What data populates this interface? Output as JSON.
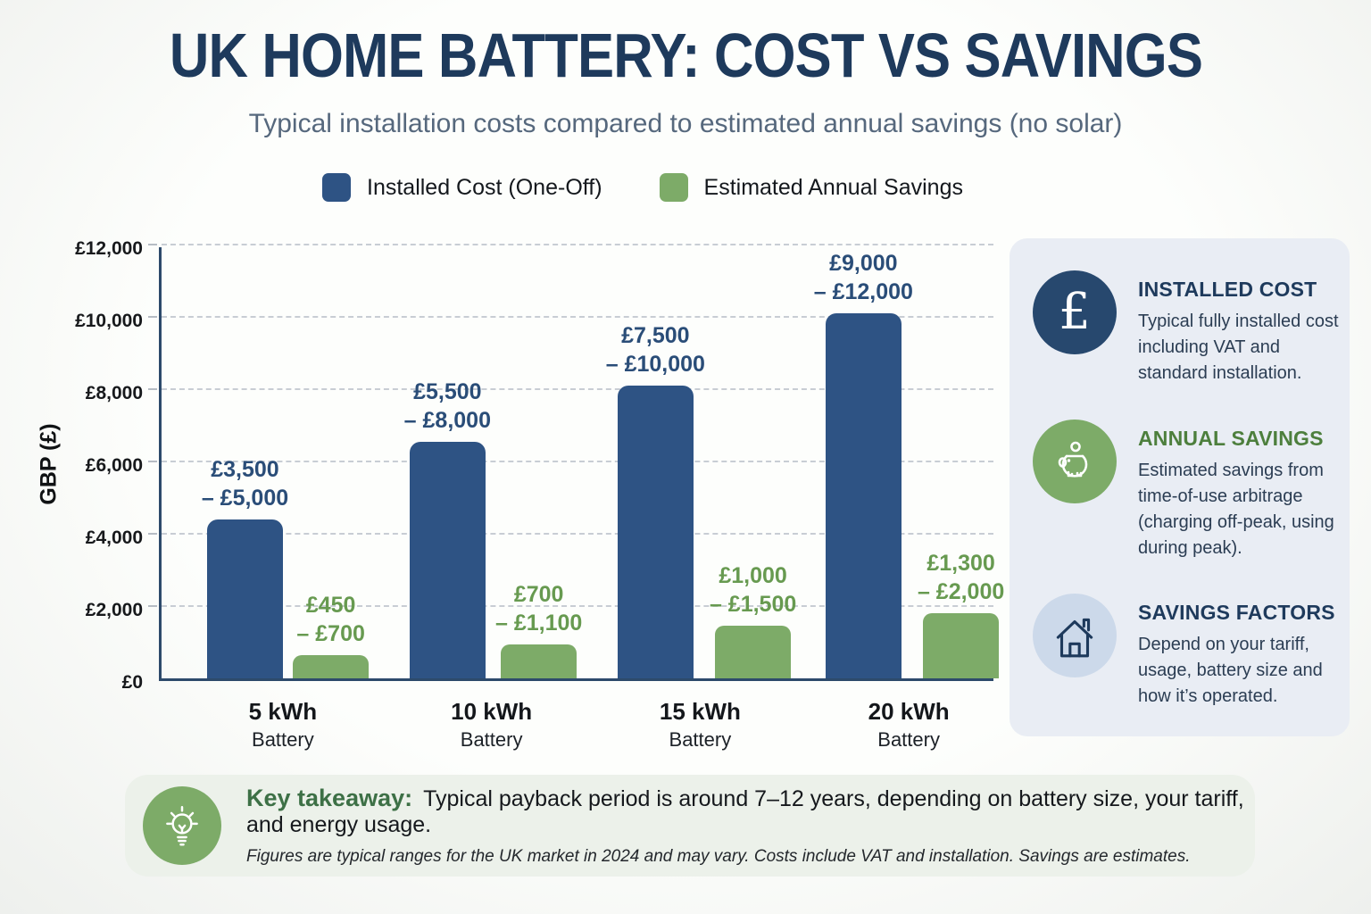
{
  "page": {
    "title": "UK HOME BATTERY: COST VS SAVINGS",
    "subtitle": "Typical installation costs compared to estimated annual savings (no solar)"
  },
  "legend": [
    {
      "label": "Installed Cost (One-Off)",
      "color": "#2e5384"
    },
    {
      "label": "Estimated Annual Savings",
      "color": "#7dab68"
    }
  ],
  "chart_data": {
    "type": "bar",
    "title": "UK HOME BATTERY: COST VS SAVINGS",
    "ylabel": "GBP (£)",
    "ylim": [
      0,
      12000
    ],
    "yticks": [
      "£0",
      "£2,000",
      "£4,000",
      "£6,000",
      "£8,000",
      "£10,000",
      "£12,000"
    ],
    "grid": "dashed horizontal",
    "legend_position": "top",
    "categories": [
      "5 kWh",
      "10 kWh",
      "15 kWh",
      "20 kWh"
    ],
    "category_sub": "Battery",
    "series": [
      {
        "name": "Installed Cost (One-Off)",
        "color": "#2e5384",
        "label_color": "#2a4d78",
        "values": [
          4400,
          6550,
          8100,
          10100
        ],
        "range_labels": [
          [
            "£3,500",
            "– £5,000"
          ],
          [
            "£5,500",
            "– £8,000"
          ],
          [
            "£7,500",
            "– £10,000"
          ],
          [
            "£9,000",
            "– £12,000"
          ]
        ]
      },
      {
        "name": "Estimated Annual Savings",
        "color": "#7dab68",
        "label_color": "#679a50",
        "values": [
          650,
          950,
          1450,
          1800
        ],
        "range_labels": [
          [
            "£450",
            "– £700"
          ],
          [
            "£700",
            "– £1,100"
          ],
          [
            "£1,000",
            "– £1,500"
          ],
          [
            "£1,300",
            "– £2,000"
          ]
        ]
      }
    ]
  },
  "sidebar": {
    "items": [
      {
        "icon": "pound-icon",
        "circle_color": "#27486e",
        "title": "INSTALLED COST",
        "title_color": "#1e3a5c",
        "body": "Typical fully installed cost including VAT and standard installation."
      },
      {
        "icon": "piggy-bank-icon",
        "circle_color": "#7dab68",
        "title": "ANNUAL SAVINGS",
        "title_color": "#4d7f3d",
        "body": "Estimated savings from time-of-use arbitrage (charging off-peak, using during peak)."
      },
      {
        "icon": "house-icon",
        "circle_color": "#ccd9ea",
        "title": "SAVINGS FACTORS",
        "title_color": "#1e3a5c",
        "body": "Depend on your tariff, usage, battery size and how it’s operated."
      }
    ]
  },
  "takeaway": {
    "icon": "lightbulb-icon",
    "circle_color": "#7dab68",
    "label": "Key takeaway:",
    "label_color": "#3d7046",
    "text": "Typical payback period is around 7–12 years, depending on battery size, your tariff, and energy usage.",
    "footnote": "Figures are typical ranges for the UK market in 2024 and may vary. Costs include VAT and installation. Savings are estimates."
  }
}
